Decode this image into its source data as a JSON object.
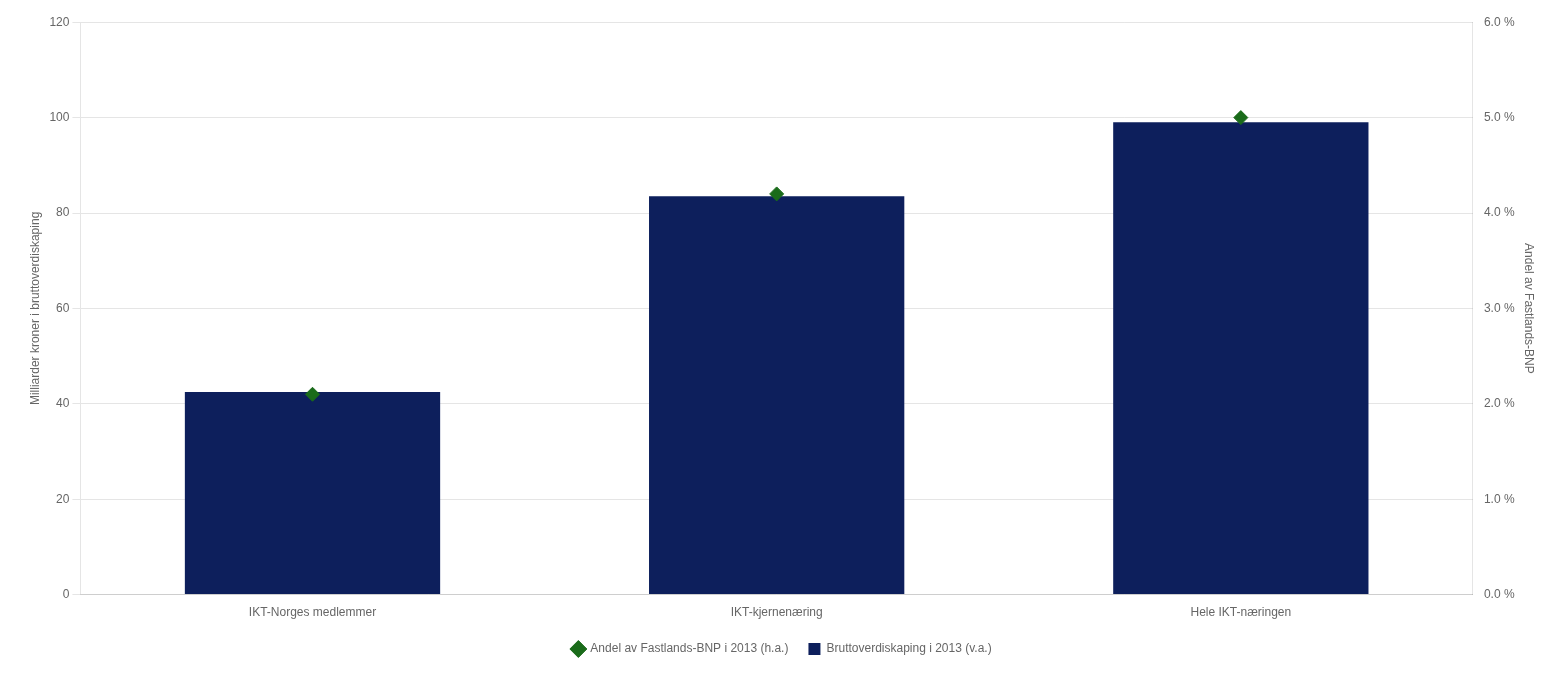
{
  "chart_data": {
    "type": "bar",
    "categories": [
      "IKT-Norges medlemmer",
      "IKT-kjernenæring",
      "Hele IKT-næringen"
    ],
    "series": [
      {
        "name": "Bruttoverdiskaping i 2013 (v.a.)",
        "type": "bar",
        "color": "#0d1f5c",
        "values": [
          42.5,
          83.5,
          99.0
        ]
      },
      {
        "name": "Andel av Fastlands-BNP i 2013 (h.a.)",
        "type": "scatter",
        "marker": "diamond",
        "color": "#1a6b1a",
        "axis": "y2",
        "values": [
          0.021,
          0.042,
          0.05
        ]
      }
    ],
    "ylabel": "Milliarder kroner i bruttoverdiskaping",
    "y2label": "Andel av Fastlands-BNP",
    "ylim": [
      0,
      120
    ],
    "yticks": [
      0,
      20,
      40,
      60,
      80,
      100,
      120
    ],
    "y2lim": [
      0.0,
      0.06
    ],
    "y2ticks": [
      {
        "value": 0.0,
        "label": "0.0 %"
      },
      {
        "value": 0.01,
        "label": "1.0 %"
      },
      {
        "value": 0.02,
        "label": "2.0 %"
      },
      {
        "value": 0.03,
        "label": "3.0 %"
      },
      {
        "value": 0.04,
        "label": "4.0 %"
      },
      {
        "value": 0.05,
        "label": "5.0 %"
      },
      {
        "value": 0.06,
        "label": "6.0 %"
      }
    ],
    "grid": true,
    "legend": "bottom"
  }
}
